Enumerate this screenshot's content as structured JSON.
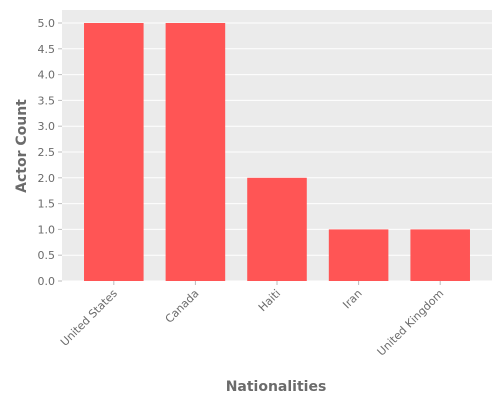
{
  "chart_data": {
    "type": "bar",
    "categories": [
      "United States",
      "Canada",
      "Haiti",
      "Iran",
      "United Kingdom"
    ],
    "values": [
      5,
      5,
      2,
      1,
      1
    ],
    "title": "",
    "xlabel": "Nationalities",
    "ylabel": "Actor Count",
    "ylim": [
      0,
      5
    ],
    "yticks": [
      0.0,
      0.5,
      1.0,
      1.5,
      2.0,
      2.5,
      3.0,
      3.5,
      4.0,
      4.5,
      5.0
    ],
    "ytick_labels": [
      "0.0",
      "0.5",
      "1.0",
      "1.5",
      "2.0",
      "2.5",
      "3.0",
      "3.5",
      "4.0",
      "4.5",
      "5.0"
    ],
    "grid": true,
    "bar_color": "#ff5555",
    "plot_background": "#ebebeb"
  }
}
